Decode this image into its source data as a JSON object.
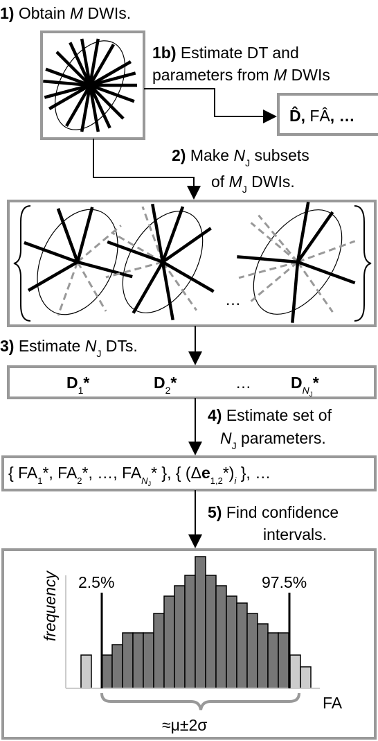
{
  "step_1": {
    "number": "1)",
    "parts": [
      "Obtain ",
      "M",
      " DWIs."
    ]
  },
  "step_1b": {
    "number": "1b)",
    "line_1": "Estimate DT and",
    "line_2": [
      "parameters from ",
      "M",
      " DWIs"
    ]
  },
  "result_1b": [
    "D̂",
    ", ",
    "FÂ",
    ", …"
  ],
  "step_2": {
    "number": "2)",
    "line_1": [
      "Make ",
      "N",
      "J",
      " subsets"
    ],
    "line_2": [
      "of ",
      "M",
      "J",
      " DWIs."
    ]
  },
  "subsets": {
    "ellipsis": "…"
  },
  "step_3": {
    "number": "3)",
    "parts": [
      "Estimate ",
      "N",
      "J",
      " DTs."
    ]
  },
  "tensors": [
    [
      "D",
      "1",
      "*"
    ],
    [
      "D",
      "2",
      "*"
    ],
    [
      "…"
    ],
    [
      "D",
      "N",
      "J",
      "*"
    ]
  ],
  "step_4": {
    "number": "4)",
    "line_1": "Estimate set of",
    "line_2": [
      "N",
      "J",
      " parameters."
    ]
  },
  "parameters": [
    "{ FA",
    "1",
    "*, FA",
    "2",
    "*, …, FA",
    "N",
    "J",
    "* }, { (Δ",
    "e",
    "1,2",
    "*)",
    "i",
    " }, …"
  ],
  "step_5": {
    "number": "5)",
    "line_1": "Find confidence",
    "line_2": "intervals."
  },
  "histogram": {
    "y_label": "frequency",
    "x_label": "FA",
    "lower": "2.5%",
    "upper": "97.5%",
    "range": "≈μ±2σ"
  }
}
